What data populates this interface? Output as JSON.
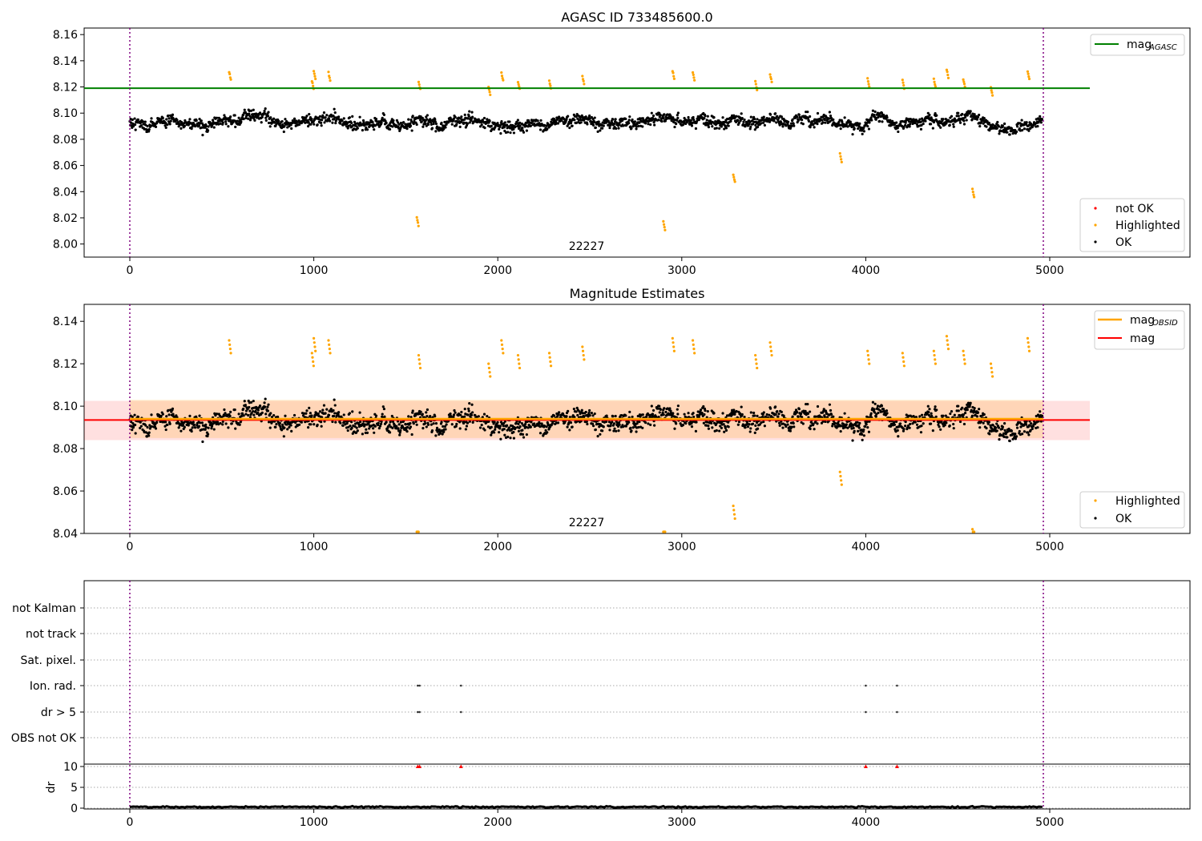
{
  "figure": {
    "panel1_title": "AGASC ID 733485600.0",
    "panel2_title": "Magnitude Estimates",
    "obsid_label": "22227"
  },
  "panel1": {
    "ylim": [
      7.99,
      8.165
    ],
    "xlim": [
      -250,
      5750
    ],
    "yticks": [
      "8.00",
      "8.02",
      "8.04",
      "8.06",
      "8.08",
      "8.10",
      "8.12",
      "8.14",
      "8.16"
    ],
    "xticks": [
      "0",
      "1000",
      "2000",
      "3000",
      "4000",
      "5000"
    ],
    "legend_top": {
      "label_main": "mag",
      "label_sub": "AGASC"
    },
    "legend_bottom": [
      "not OK",
      "Highlighted",
      "OK"
    ],
    "mag_agasc": 8.119
  },
  "panel2": {
    "ylim": [
      8.04,
      8.148
    ],
    "yticks": [
      "8.04",
      "8.06",
      "8.08",
      "8.10",
      "8.12",
      "8.14"
    ],
    "xticks": [
      "0",
      "1000",
      "2000",
      "3000",
      "4000",
      "5000"
    ],
    "legend_top": [
      {
        "label_main": "mag",
        "label_sub": "OBSID"
      },
      {
        "label_main": "mag",
        "label_sub": ""
      }
    ],
    "legend_bottom": [
      "Highlighted",
      "OK"
    ],
    "mag_obsid": 8.094,
    "mag": 8.0935,
    "band_mag": [
      8.084,
      8.1025
    ],
    "band_obsid": [
      8.085,
      8.103
    ]
  },
  "panel3": {
    "flag_labels": [
      "not Kalman",
      "not track",
      "Sat. pixel.",
      "Ion. rad.",
      "dr > 5",
      "OBS not OK"
    ],
    "dr_label": "dr",
    "dr_ticks": [
      "0",
      "5",
      "10"
    ],
    "xticks": [
      "0",
      "1000",
      "2000",
      "3000",
      "4000",
      "5000"
    ],
    "ion_rad_x": [
      1565,
      1575,
      1800,
      4000,
      4170
    ],
    "dr5_x": [
      1565,
      1575,
      1800,
      4000,
      4170
    ],
    "red_markers_x": [
      1565,
      1575,
      1800,
      4000,
      4170
    ]
  },
  "chart_data": {
    "type": "scatter",
    "title": "AGASC ID 733485600.0",
    "x_range": [
      0,
      4960
    ],
    "obs_boundaries": [
      0,
      4960
    ],
    "series": [
      {
        "name": "OK",
        "y_center": 8.093,
        "y_spread": 0.008
      },
      {
        "name": "Highlighted",
        "points": [
          [
            540,
            8.131
          ],
          [
            990,
            8.125
          ],
          [
            1000,
            8.132
          ],
          [
            1080,
            8.131
          ],
          [
            1560,
            8.02
          ],
          [
            1570,
            8.124
          ],
          [
            1950,
            8.12
          ],
          [
            2020,
            8.131
          ],
          [
            2110,
            8.124
          ],
          [
            2280,
            8.125
          ],
          [
            2460,
            8.128
          ],
          [
            2900,
            8.017
          ],
          [
            2950,
            8.132
          ],
          [
            3060,
            8.131
          ],
          [
            3280,
            8.053
          ],
          [
            3400,
            8.124
          ],
          [
            3480,
            8.13
          ],
          [
            3860,
            8.069
          ],
          [
            4010,
            8.126
          ],
          [
            4200,
            8.125
          ],
          [
            4370,
            8.126
          ],
          [
            4440,
            8.133
          ],
          [
            4530,
            8.126
          ],
          [
            4580,
            8.042
          ],
          [
            4680,
            8.12
          ],
          [
            4880,
            8.132
          ]
        ]
      },
      {
        "name": "not OK",
        "points": []
      }
    ],
    "mag_agasc": 8.119,
    "mag_obsid": 8.094,
    "mag": 8.0935,
    "dr_typical": 0.3
  }
}
